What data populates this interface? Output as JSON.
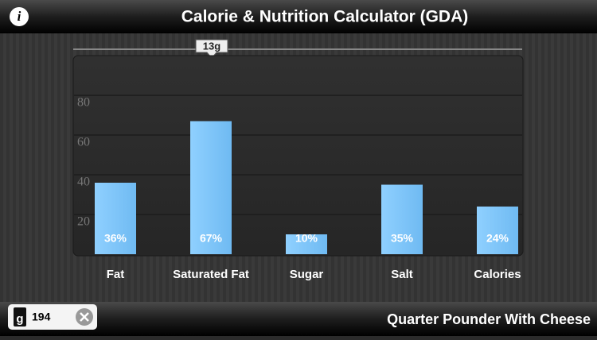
{
  "header": {
    "info_button": "i",
    "title": "Calorie & Nutrition Calculator (GDA)"
  },
  "slider": {
    "label": "13g"
  },
  "chart_data": {
    "type": "bar",
    "categories": [
      "Fat",
      "Saturated Fat",
      "Sugar",
      "Salt",
      "Calories"
    ],
    "values": [
      36,
      67,
      10,
      35,
      24
    ],
    "value_labels": [
      "36%",
      "67%",
      "10%",
      "35%",
      "24%"
    ],
    "color": "#7fc6fb",
    "ylim": [
      0,
      100
    ],
    "yticks": [
      20,
      40,
      60,
      80
    ],
    "grid": true
  },
  "footer": {
    "unit_icon": "g",
    "amount": "194",
    "product": "Quarter Pounder With Cheese"
  }
}
